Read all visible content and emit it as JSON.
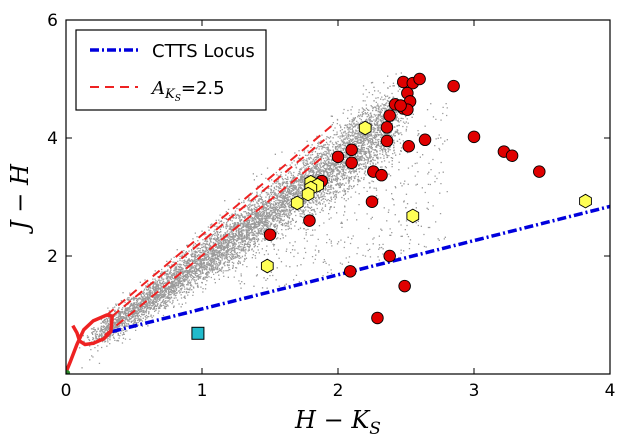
{
  "chart_data": {
    "type": "scatter",
    "xlim": [
      0,
      4
    ],
    "ylim": [
      0,
      6
    ],
    "xticks": [
      "0",
      "1",
      "2",
      "3",
      "4"
    ],
    "yticks": [
      "2",
      "4",
      "6"
    ],
    "xtick_values": [
      0,
      1,
      2,
      3,
      4
    ],
    "ytick_values": [
      2,
      4,
      6
    ],
    "xlabel": {
      "base": "H − K",
      "sub": "S"
    },
    "ylabel": "J − H",
    "grid": false,
    "legend": {
      "position": "top-left",
      "entries": [
        {
          "label": "CTTS Locus",
          "style": "dashdot",
          "color": "#0000dd"
        },
        {
          "label_base": "A",
          "label_sub": "K",
          "label_subsub": "S",
          "label_value": "=2.5",
          "style": "dashed",
          "color": "#ee2222"
        }
      ]
    },
    "ctts_locus": {
      "x": [
        0.34,
        4.0
      ],
      "y": [
        0.72,
        2.84
      ],
      "color": "#0000dd"
    },
    "reddening_lines": {
      "color": "#ee2222",
      "lines": [
        {
          "x": [
            0.2,
            1.9
          ],
          "y": [
            0.5,
            3.7
          ]
        },
        {
          "x": [
            0.34,
            1.9
          ],
          "y": [
            0.98,
            3.97
          ]
        },
        {
          "x": [
            0.3,
            1.95
          ],
          "y": [
            1.0,
            4.2
          ]
        }
      ]
    },
    "main_sequence": {
      "color": "#ee2222",
      "x": [
        0.0,
        0.03,
        0.08,
        0.13,
        0.2,
        0.3,
        0.34,
        0.33,
        0.28,
        0.2,
        0.14,
        0.1,
        0.08,
        0.05
      ],
      "y": [
        0.03,
        0.2,
        0.5,
        0.75,
        0.9,
        1.0,
        0.98,
        0.72,
        0.6,
        0.52,
        0.5,
        0.56,
        0.7,
        0.82
      ]
    },
    "field_cloud": {
      "color": "#7a7a7a",
      "band_points": 7000,
      "scatter_points": 700
    },
    "series": [
      {
        "marker": "circle",
        "color": "#e00000",
        "edge": "#000000",
        "x": [
          2.48,
          2.55,
          2.51,
          2.6,
          2.85,
          2.42,
          2.48,
          2.53,
          2.51,
          2.46,
          2.38,
          2.36,
          2.36,
          2.64,
          2.52,
          3.0,
          3.22,
          3.28,
          3.48,
          2.0,
          2.1,
          2.1,
          1.88,
          2.26,
          2.32,
          2.25,
          1.79,
          1.5,
          2.09,
          2.38,
          2.49,
          2.29
        ],
        "y": [
          4.95,
          4.93,
          4.76,
          5.0,
          4.88,
          4.57,
          4.5,
          4.62,
          4.48,
          4.55,
          4.38,
          4.18,
          3.95,
          3.97,
          3.86,
          4.02,
          3.77,
          3.7,
          3.43,
          3.68,
          3.8,
          3.58,
          3.27,
          3.43,
          3.37,
          2.92,
          2.6,
          2.36,
          1.74,
          2.0,
          1.49,
          0.95
        ]
      },
      {
        "marker": "hexagon",
        "color": "#ffff55",
        "edge": "#000000",
        "x": [
          2.2,
          1.8,
          1.85,
          1.8,
          1.78,
          1.7,
          1.48,
          2.55,
          3.82
        ],
        "y": [
          4.17,
          3.25,
          3.2,
          3.15,
          3.05,
          2.9,
          1.83,
          2.68,
          2.93
        ]
      },
      {
        "marker": "square",
        "color": "#22bbcc",
        "edge": "#000000",
        "x": [
          0.97
        ],
        "y": [
          0.69
        ]
      },
      {
        "marker": "circle-small",
        "color": "#2a8a2a",
        "edge": "#2a8a2a",
        "x": [
          0.01
        ],
        "y": [
          0.02
        ]
      }
    ]
  }
}
